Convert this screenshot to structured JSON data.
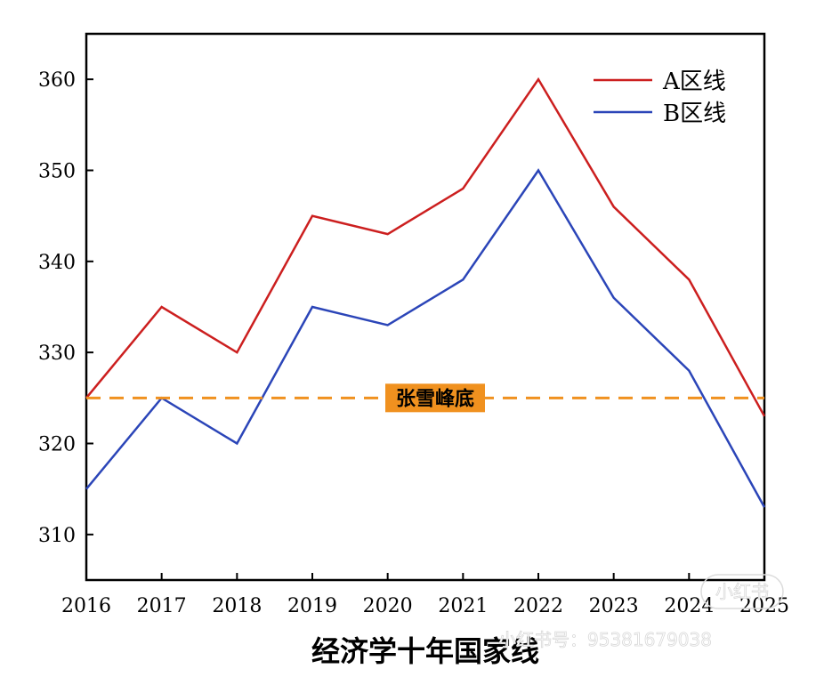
{
  "chart_data": {
    "type": "line",
    "title": "经济学十年国家线",
    "xlabel": "",
    "ylabel": "",
    "x": [
      "2016",
      "2017",
      "2018",
      "2019",
      "2020",
      "2021",
      "2022",
      "2023",
      "2024",
      "2025"
    ],
    "ylim": [
      305,
      365
    ],
    "yticks": [
      310,
      320,
      330,
      340,
      350,
      360
    ],
    "series": [
      {
        "name": "A区线",
        "color": "#cc1f1f",
        "values": [
          325,
          335,
          330,
          345,
          343,
          348,
          360,
          346,
          338,
          323
        ]
      },
      {
        "name": "B区线",
        "color": "#2b45b8",
        "values": [
          315,
          325,
          320,
          335,
          333,
          338,
          350,
          336,
          328,
          313
        ]
      }
    ],
    "reference_line": {
      "value": 325,
      "label": "张雪峰底",
      "color": "#f0911f",
      "style": "dashed"
    },
    "legend_position": "top-right",
    "grid": false
  },
  "watermark": {
    "text": "小红书号：95381679038",
    "logo_text": "小红书"
  }
}
